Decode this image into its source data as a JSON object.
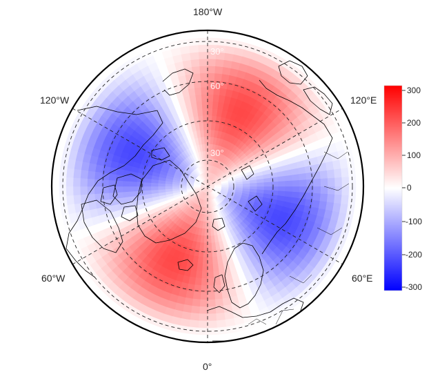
{
  "map": {
    "projection": "north-polar-stereographic",
    "longitude_labels": {
      "top": "180°W",
      "bottom": "0°",
      "upper_left": "120°W",
      "upper_right": "120°E",
      "lower_left": "60°W",
      "lower_right": "60°E"
    },
    "latitude_labels": [
      "30°",
      "60°",
      "30°"
    ],
    "graticule_style": "dashed"
  },
  "colorbar": {
    "ticks": [
      "300",
      "200",
      "100",
      "0",
      "-100",
      "-200",
      "-300"
    ],
    "range": [
      -300,
      300
    ],
    "colors": {
      "low": "#0000ff",
      "mid": "#ffffff",
      "high": "#ff0000"
    }
  },
  "chart_data": {
    "type": "heatmap",
    "value_range": [
      -300,
      300
    ],
    "pattern": "wavenumber-2 anomaly: negative over North America/Greenland and over Siberia, positive over the North Pacific/Alaska and over Europe"
  }
}
